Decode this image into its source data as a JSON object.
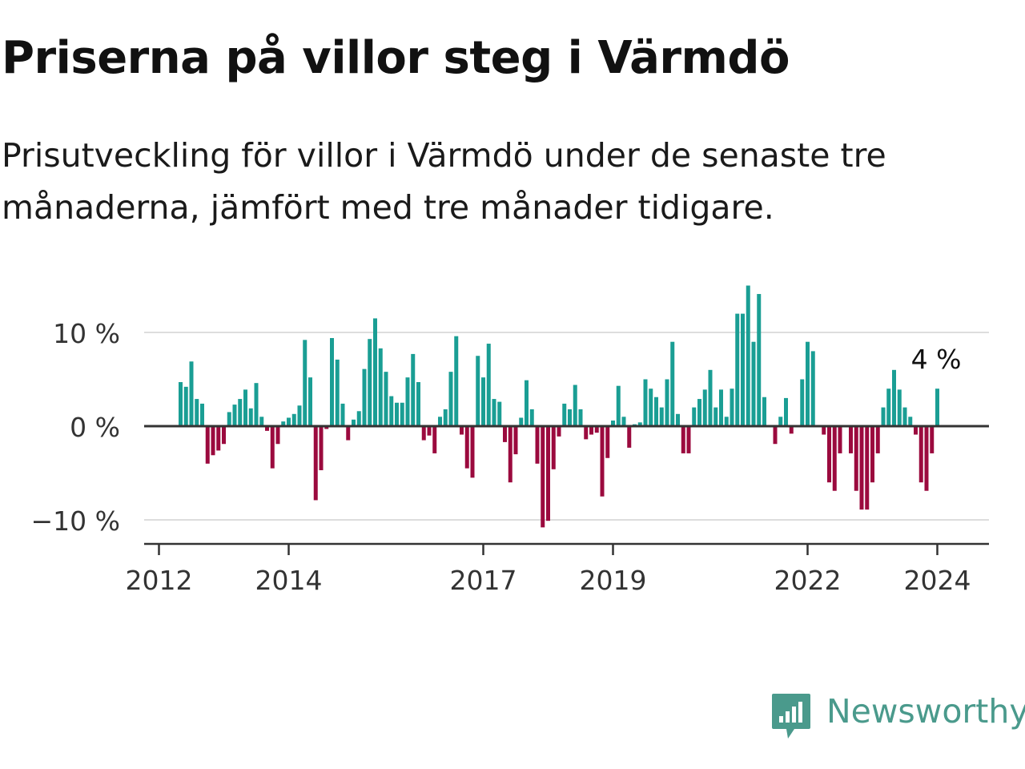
{
  "title": "Priserna på villor steg i Värmdö",
  "subtitle": "Prisutveckling för villor i Värmdö under de senaste tre månaderna, jämfört med tre månader tidigare.",
  "brand": {
    "name": "Newsworthy",
    "icon": "newsworthy-logo-icon",
    "color": "#4a9a8c"
  },
  "colors": {
    "positive": "#1a9e94",
    "negative": "#9b0a3e",
    "grid": "#dddddd",
    "axis": "#333333",
    "text": "#333333"
  },
  "chart_data": {
    "type": "bar",
    "x_unit": "month",
    "x_start": "2012-05",
    "x_end": "2024-02",
    "values": [
      4.7,
      4.2,
      6.9,
      2.9,
      2.4,
      -4.0,
      -3.1,
      -2.6,
      -1.9,
      1.5,
      2.3,
      2.9,
      3.9,
      1.9,
      4.6,
      1.0,
      -0.5,
      -4.5,
      -1.9,
      0.5,
      0.9,
      1.3,
      2.2,
      9.2,
      5.2,
      -7.9,
      -4.7,
      -0.3,
      9.4,
      7.1,
      2.4,
      -1.5,
      0.7,
      1.6,
      6.1,
      9.3,
      11.5,
      8.3,
      5.8,
      3.2,
      2.5,
      2.5,
      5.2,
      7.7,
      4.7,
      -1.5,
      -1.0,
      -2.9,
      1.0,
      1.8,
      5.8,
      9.6,
      -0.9,
      -4.5,
      -5.5,
      7.5,
      5.2,
      8.8,
      2.9,
      2.6,
      -1.7,
      -6.0,
      -3.0,
      0.9,
      4.9,
      1.8,
      -4.0,
      -10.8,
      -10.1,
      -4.6,
      -1.1,
      2.4,
      1.8,
      4.4,
      1.8,
      -1.4,
      -0.9,
      -0.7,
      -7.5,
      -3.4,
      0.6,
      4.3,
      1.0,
      -2.3,
      0.2,
      0.4,
      5.0,
      4.0,
      3.1,
      2.0,
      5.0,
      9.0,
      1.3,
      -2.9,
      -2.9,
      2.0,
      2.9,
      3.9,
      6.0,
      2.0,
      3.9,
      1.0,
      4.0,
      12.0,
      12.0,
      15.0,
      9.0,
      14.1,
      3.1,
      0.0,
      -1.9,
      1.0,
      3.0,
      -0.8,
      0.0,
      5.0,
      9.0,
      8.0,
      0.0,
      -0.9,
      -6.0,
      -6.9,
      -2.9,
      0.0,
      -2.9,
      -6.9,
      -8.9,
      -8.9,
      -6.0,
      -2.9,
      2.0,
      4.0,
      6.0,
      3.9,
      2.0,
      1.0,
      -0.9,
      -6.0,
      -6.9,
      -2.9,
      4.0
    ],
    "yticks": [
      {
        "value": -10,
        "label": "−10 %"
      },
      {
        "value": 0,
        "label": "0 %"
      },
      {
        "value": 10,
        "label": "10 %"
      }
    ],
    "xticks": [
      {
        "year": 2012,
        "label": "2012"
      },
      {
        "year": 2014,
        "label": "2014"
      },
      {
        "year": 2017,
        "label": "2017"
      },
      {
        "year": 2019,
        "label": "2019"
      },
      {
        "year": 2022,
        "label": "2022"
      },
      {
        "year": 2024,
        "label": "2024"
      }
    ],
    "ylim": [
      -12.5,
      15
    ],
    "grid": true,
    "legend": "none",
    "annotation": {
      "label": "4 %",
      "value": 4
    }
  }
}
